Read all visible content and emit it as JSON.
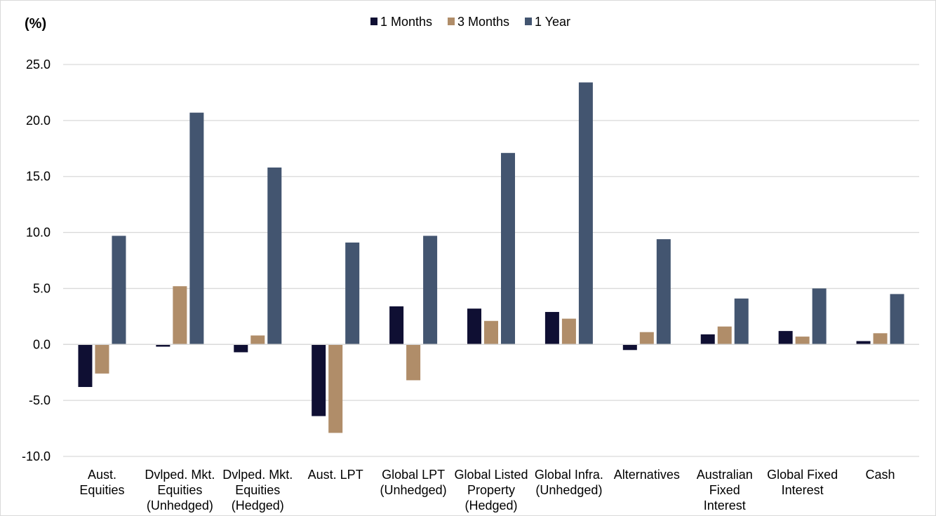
{
  "chart_data": {
    "type": "bar",
    "unit_label": "(%)",
    "categories": [
      [
        "Aust.",
        "Equities"
      ],
      [
        "Dvlped. Mkt.",
        "Equities",
        "(Unhedged)"
      ],
      [
        "Dvlped. Mkt.",
        "Equities",
        "(Hedged)"
      ],
      [
        "Aust. LPT"
      ],
      [
        "Global LPT",
        "(Unhedged)"
      ],
      [
        "Global Listed",
        "Property",
        "(Hedged)"
      ],
      [
        "Global Infra.",
        "(Unhedged)"
      ],
      [
        "Alternatives"
      ],
      [
        "Australian",
        "Fixed",
        "Interest"
      ],
      [
        "Global Fixed",
        "Interest"
      ],
      [
        "Cash"
      ]
    ],
    "series": [
      {
        "name": "1 Months",
        "color": "#0f0f33",
        "values": [
          -3.8,
          -0.2,
          -0.7,
          -6.4,
          3.4,
          3.2,
          2.9,
          -0.5,
          0.9,
          1.2,
          0.3
        ]
      },
      {
        "name": "3 Months",
        "color": "#b08d69",
        "values": [
          -2.6,
          5.2,
          0.8,
          -7.9,
          -3.2,
          2.1,
          2.3,
          1.1,
          1.6,
          0.7,
          1.0
        ]
      },
      {
        "name": "1 Year",
        "color": "#435570",
        "values": [
          9.7,
          20.7,
          15.8,
          9.1,
          9.7,
          17.1,
          23.4,
          9.4,
          4.1,
          5.0,
          4.5
        ]
      }
    ],
    "ylim": [
      -10,
      25
    ],
    "yticks": [
      "25.0",
      "20.0",
      "15.0",
      "10.0",
      "5.0",
      "0.0",
      "-5.0",
      "-10.0"
    ],
    "ytick_values": [
      25,
      20,
      15,
      10,
      5,
      0,
      -5,
      -10
    ],
    "grid": true,
    "legend_position": "top-center"
  }
}
